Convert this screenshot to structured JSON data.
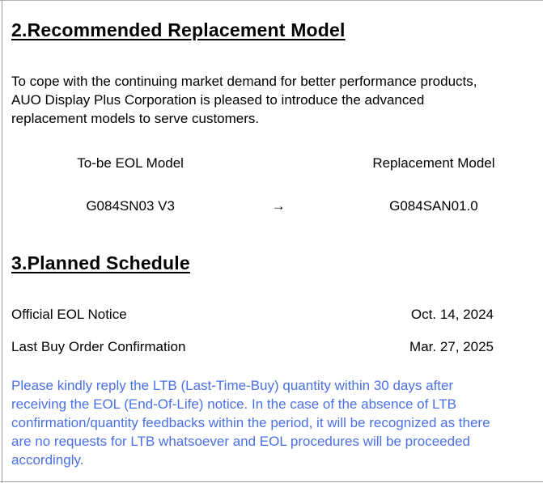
{
  "page": {
    "background_color": "#ffffff",
    "text_color": "#000000",
    "frame_line_color": "#9a9a9a"
  },
  "section_replacement": {
    "heading": "2.Recommended Replacement Model",
    "intro_lines": [
      "To cope with the continuing market demand for better performance products,",
      "AUO Display Plus Corporation is pleased to introduce the advanced",
      "replacement models to serve customers."
    ],
    "table": {
      "col1_header": "To-be EOL Model",
      "col2_header": "Replacement Model",
      "eol_model": "G084SN03 V3",
      "arrow": "→",
      "replacement_model": "G084SAN01.0"
    }
  },
  "section_schedule": {
    "heading": "3.Planned Schedule",
    "rows": [
      {
        "label": "Official EOL Notice",
        "date": "Oct. 14, 2024"
      },
      {
        "label": "Last Buy Order Confirmation",
        "date": "Mar. 27, 2025"
      }
    ],
    "notice_color": "#4a70e6",
    "notice_lines": [
      "Please kindly reply the LTB (Last-Time-Buy) quantity within 30 days after",
      "receiving the EOL (End-Of-Life) notice. In the case of the absence of LTB",
      "confirmation/quantity feedbacks within the period, it will be recognized as there",
      "are no requests for LTB whatsoever and EOL procedures will be proceeded",
      "accordingly."
    ]
  }
}
